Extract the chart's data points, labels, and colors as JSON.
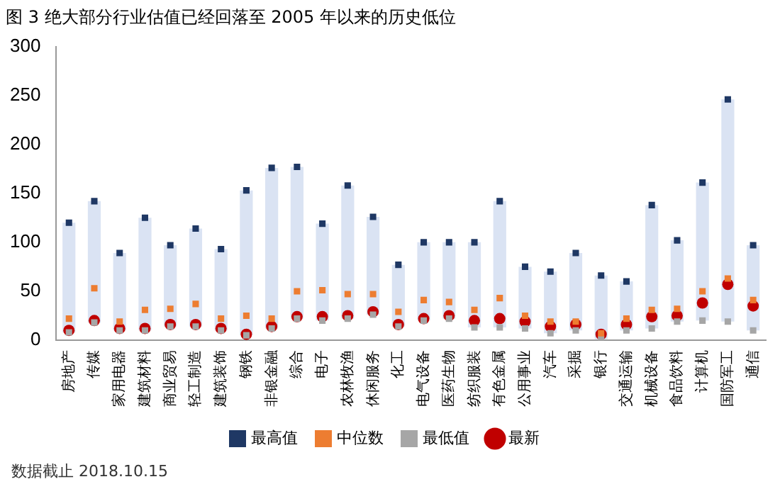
{
  "chart_data": {
    "type": "bar",
    "title": "图 3 绝大部分行业估值已经回落至 2005 年以来的历史低位",
    "categories": [
      "房地产",
      "传媒",
      "家用电器",
      "建筑材料",
      "商业贸易",
      "轻工制造",
      "建筑装饰",
      "钢铁",
      "非银金融",
      "综合",
      "电子",
      "农林牧渔",
      "休闲服务",
      "化工",
      "电气设备",
      "医药生物",
      "纺织服装",
      "有色金属",
      "公用事业",
      "汽车",
      "采掘",
      "银行",
      "交通运输",
      "机械设备",
      "食品饮料",
      "计算机",
      "国防军工",
      "通信"
    ],
    "series": [
      {
        "color": "#dae3f3",
        "base": [
          8,
          18,
          10,
          10,
          14,
          14,
          10,
          5,
          12,
          22,
          20,
          22,
          26,
          14,
          20,
          22,
          13,
          13,
          12,
          7,
          10,
          1,
          10,
          12,
          19,
          20,
          19,
          10
        ],
        "values": [
          112,
          124,
          79,
          115,
          83,
          100,
          83,
          148,
          164,
          155,
          99,
          136,
          100,
          63,
          80,
          78,
          87,
          129,
          63,
          63,
          79,
          65,
          50,
          126,
          83,
          141,
          227,
          87
        ]
      },
      {
        "type": "scatter",
        "name": "最高值",
        "color": "#1f3864",
        "marker": "square",
        "values": [
          120,
          142,
          89,
          125,
          97,
          114,
          93,
          153,
          176,
          177,
          119,
          158,
          126,
          77,
          100,
          100,
          100,
          142,
          75,
          70,
          89,
          66,
          60,
          138,
          102,
          161,
          246,
          97
        ]
      },
      {
        "type": "scatter",
        "name": "中位数",
        "color": "#ed7d31",
        "marker": "square",
        "values": [
          22,
          53,
          19,
          31,
          32,
          37,
          22,
          25,
          22,
          50,
          51,
          47,
          47,
          29,
          41,
          39,
          31,
          43,
          25,
          19,
          19,
          7,
          22,
          31,
          32,
          50,
          63,
          41
        ]
      },
      {
        "type": "scatter",
        "name": "最低值",
        "color": "#a6a6a6",
        "marker": "square",
        "values": [
          8,
          18,
          10,
          10,
          14,
          14,
          10,
          5,
          12,
          22,
          20,
          22,
          26,
          14,
          20,
          22,
          13,
          13,
          12,
          7,
          10,
          1,
          10,
          12,
          19,
          20,
          19,
          10
        ]
      },
      {
        "type": "scatter",
        "name": "最新",
        "color": "#c00000",
        "marker": "circle",
        "values": [
          10,
          20,
          12,
          12,
          16,
          16,
          12,
          6,
          14,
          24,
          24,
          25,
          29,
          16,
          22,
          25,
          20,
          22,
          19,
          14,
          16,
          6,
          16,
          24,
          25,
          38,
          57,
          35
        ]
      }
    ],
    "ylim": [
      0,
      300
    ],
    "yticks": [
      0,
      50,
      100,
      150,
      200,
      250,
      300
    ],
    "legend": "bottom",
    "annotations": [
      "数据截止 2018.10.15"
    ]
  }
}
